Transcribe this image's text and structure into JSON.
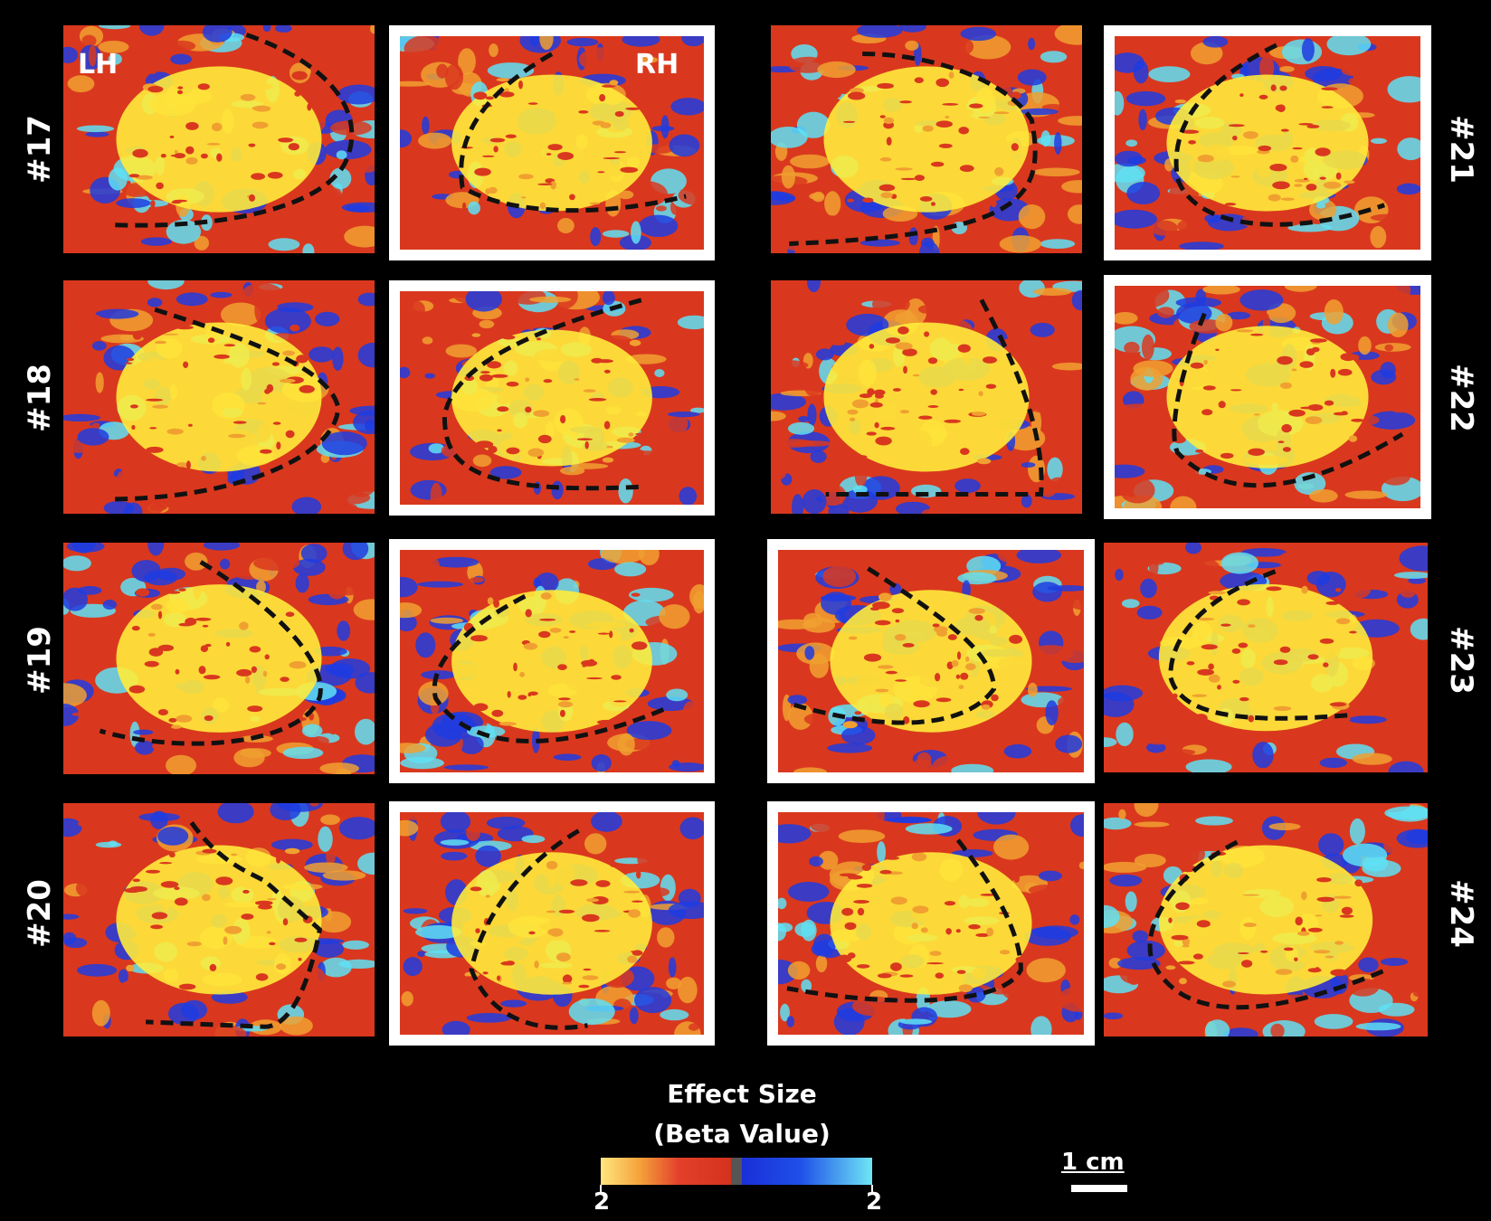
{
  "colors": {
    "yellow": "#ffeb3b",
    "orange": "#f0a030",
    "red": "#d9381e",
    "blue": "#1e3ce0",
    "cyan": "#5fe0f5",
    "frame": "#ffffff",
    "background": "#000000",
    "roi_outline": "#111111"
  },
  "hemisphere_labels": {
    "left": "LH",
    "right": "RH"
  },
  "subjects": {
    "s17": "#17",
    "s18": "#18",
    "s19": "#19",
    "s20": "#20",
    "s21": "#21",
    "s22": "#22",
    "s23": "#23",
    "s24": "#24"
  },
  "colorbar": {
    "title_line1": "Effect Size",
    "title_line2": "(Beta Value)",
    "tick_left": "2",
    "tick_right": "2"
  },
  "scale": {
    "label": "1 cm"
  }
}
